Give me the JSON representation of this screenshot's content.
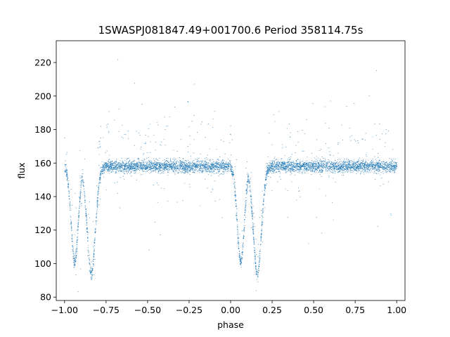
{
  "chart_data": {
    "type": "scatter",
    "title": "1SWASPJ081847.49+001700.6 Period 358114.75s",
    "xlabel": "phase",
    "ylabel": "flux",
    "xlim": [
      -1.05,
      1.05
    ],
    "ylim": [
      78,
      233
    ],
    "xticks": [
      -1.0,
      -0.75,
      -0.5,
      -0.25,
      0.0,
      0.25,
      0.5,
      0.75,
      1.0
    ],
    "xtick_labels": [
      "−1.00",
      "−0.75",
      "−0.50",
      "−0.25",
      "0.00",
      "0.25",
      "0.50",
      "0.75",
      "1.00"
    ],
    "yticks": [
      80,
      100,
      120,
      140,
      160,
      180,
      200,
      220
    ],
    "ytick_labels": [
      "80",
      "100",
      "120",
      "140",
      "160",
      "180",
      "200",
      "220"
    ],
    "grid": false,
    "legend": "none",
    "series": [
      {
        "color": "#1f77b4",
        "marker_size": 0.6,
        "description_points": {
          "baseline_flux": 158,
          "primary_eclipse_phases": [
            -0.94,
            0.06
          ],
          "primary_eclipse_min_flux": 101,
          "secondary_eclipse_phases": [
            -0.84,
            0.16
          ],
          "secondary_eclipse_min_flux": 94,
          "x_range": [
            -1.0,
            1.0
          ]
        }
      }
    ]
  }
}
